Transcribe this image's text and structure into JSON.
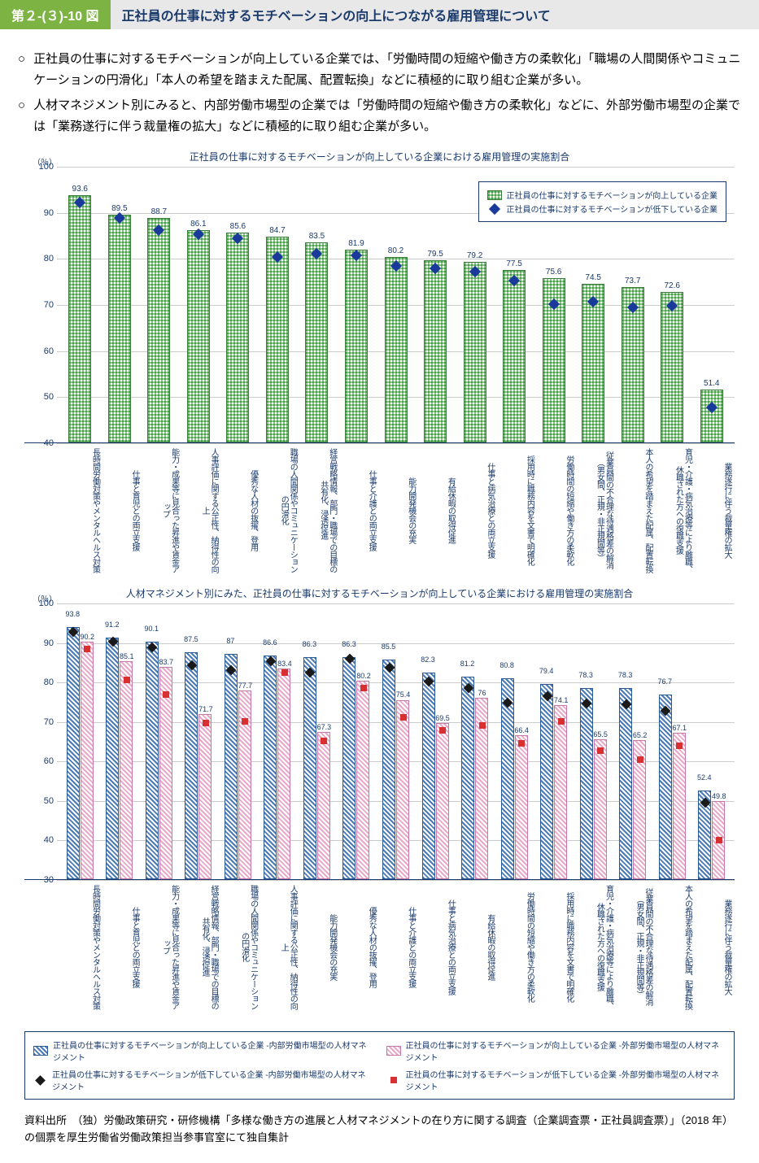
{
  "header": {
    "badge": "第２-(３)-10 図",
    "title": "正社員の仕事に対するモチベーションの向上につながる雇用管理について"
  },
  "bullets": [
    "正社員の仕事に対するモチベーションが向上している企業では、「労働時間の短縮や働き方の柔軟化」「職場の人間関係やコミュニケーションの円滑化」「本人の希望を踏まえた配属、配置転換」などに積極的に取り組む企業が多い。",
    "人材マネジメント別にみると、内部労働市場型の企業では「労働時間の短縮や働き方の柔軟化」などに、外部労働市場型の企業では「業務遂行に伴う裁量権の拡大」などに積極的に取り組む企業が多い。"
  ],
  "chart1": {
    "title": "正社員の仕事に対するモチベーションが向上している企業における雇用管理の実施割合",
    "y_unit": "（％）",
    "ymin": 40,
    "ymax": 100,
    "ystep": 10,
    "legend": [
      "正社員の仕事に対するモチベーションが向上している企業",
      "正社員の仕事に対するモチベーションが低下している企業"
    ],
    "categories": [
      "長時間労働対策やメンタルヘルス対策",
      "仕事と育児との両立支援",
      "能力・成果等に見合った昇進や賃金アップ",
      "人事評価に関する公正性、納得性の向上",
      "優秀な人材の抜擢、登用",
      "職場の人間関係やコミュニケーションの円滑化",
      "経営戦略情報、部門・職場での目標の共有化、浸透促進",
      "仕事と介護との両立支援",
      "能力開発機会の充実",
      "有給休暇の取得促進",
      "仕事と病気治療との両立支援",
      "採用時に職務内容を文書で明確化",
      "労働時間の短縮や働き方の柔軟化",
      "従業員間の不合理な待遇格差の解消（男女間、正規・非正規間等）",
      "本人の希望を踏まえた配属、配置転換",
      "育児・介護・病気治療等により離職、休職された方への復職支援",
      "業務遂行に伴う裁量権の拡大"
    ],
    "bars": [
      93.6,
      89.5,
      88.7,
      86.1,
      85.6,
      84.7,
      83.5,
      81.9,
      80.2,
      79.5,
      79.2,
      77.5,
      75.6,
      74.5,
      73.7,
      72.6,
      51.4
    ],
    "markers": [
      92.3,
      88.9,
      86.2,
      85.4,
      84.4,
      80.5,
      81.2,
      80.8,
      78.5,
      78.0,
      77.2,
      75.3,
      70.2,
      70.7,
      69.5,
      69.8,
      47.8
    ],
    "bar_color": "#8bc98b",
    "bar_border": "#3a7a3a",
    "marker_color": "#1a3a9b",
    "grid_color": "#cccccc",
    "axis_color": "#1a3a6b"
  },
  "chart2": {
    "title": "人材マネジメント別にみた、正社員の仕事に対するモチベーションが向上している企業における雇用管理の実施割合",
    "y_unit": "（％）",
    "ymin": 30,
    "ymax": 100,
    "ystep": 10,
    "categories": [
      "長時間労働対策やメンタルヘルス対策",
      "仕事と育児との両立支援",
      "能力・成果等に見合った昇進や賃金アップ",
      "経営戦略情報、部門・職場での目標の共有化、浸透促進",
      "職場の人間関係やコミュニケーションの円滑化",
      "人事評価に関する公正性、納得性の向上",
      "能力開発機会の充実",
      "優秀な人材の抜擢、登用",
      "仕事と介護との両立支援",
      "仕事と病気治療との両立支援",
      "有給休暇の取得促進",
      "労働時間の短縮や働き方の柔軟化",
      "採用時に職務内容を文書で明確化",
      "育児・介護・病気治療等により離職、休職された方への復職支援",
      "従業員間の不合理な待遇格差の解消（男女間、正規・非正規間等）",
      "本人の希望を踏まえた配属、配置転換",
      "業務遂行に伴う裁量権の拡大"
    ],
    "bars_blue": [
      93.8,
      91.2,
      90.1,
      87.5,
      87.0,
      86.6,
      86.3,
      86.3,
      85.5,
      82.3,
      81.2,
      80.8,
      79.4,
      78.3,
      78.3,
      76.7,
      52.4
    ],
    "bars_pink": [
      90.2,
      85.1,
      83.7,
      71.7,
      77.7,
      83.4,
      67.3,
      80.2,
      75.4,
      69.5,
      76.0,
      66.4,
      74.1,
      65.5,
      65.2,
      67.1,
      49.8
    ],
    "markers_black": [
      92.8,
      90.4,
      88.9,
      84.4,
      83.1,
      85.4,
      82.6,
      85.9,
      83.8,
      80.3,
      78.6,
      74.8,
      76.6,
      74.6,
      74.5,
      72.8,
      49.5
    ],
    "markers_red": [
      88.5,
      80.7,
      77.0,
      69.8,
      70.2,
      82.5,
      65.2,
      78.6,
      71.2,
      67.8,
      69.2,
      64.5,
      70.2,
      62.8,
      60.5,
      64.0,
      40.1
    ],
    "bar_blue_color": "#4a7bb8",
    "bar_pink_color": "#e8a8c8",
    "marker_black": "#1a1a1a",
    "marker_red": "#d83030",
    "legend": [
      "正社員の仕事に対するモチベーションが向上している企業 -内部労働市場型の人材マネジメント",
      "正社員の仕事に対するモチベーションが向上している企業 -外部労働市場型の人材マネジメント",
      "正社員の仕事に対するモチベーションが低下している企業 -内部労働市場型の人材マネジメント",
      "正社員の仕事に対するモチベーションが低下している企業 -外部労働市場型の人材マネジメント"
    ]
  },
  "source": "資料出所　（独）労働政策研究・研修機構「多様な働き方の進展と人材マネジメントの在り方に関する調査（企業調査票・正社員調査票）」（2018 年）の個票を厚生労働省労働政策担当参事官室にて独自集計"
}
